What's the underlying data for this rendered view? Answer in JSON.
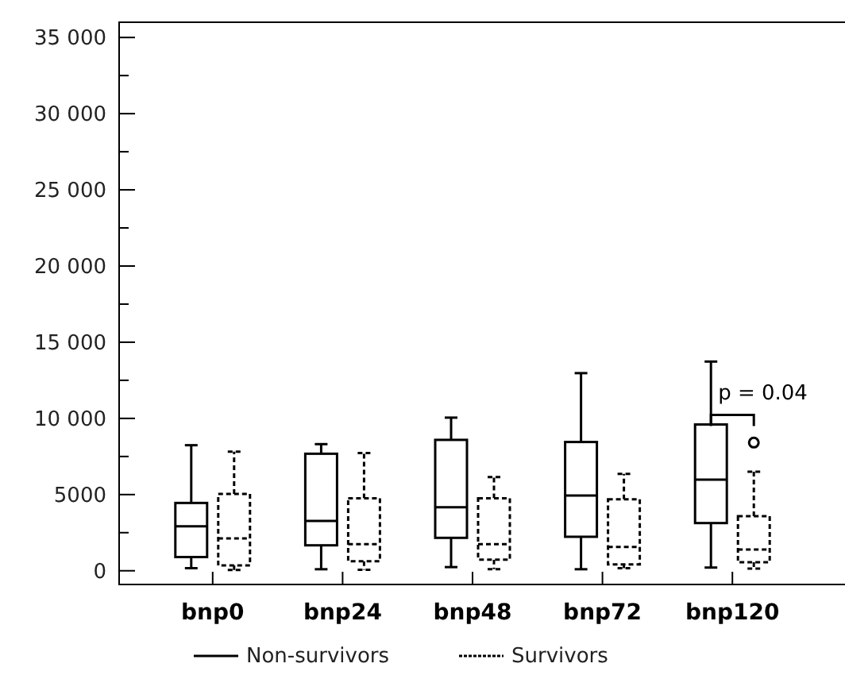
{
  "chart_data": {
    "type": "box",
    "categories": [
      "bnp0",
      "bnp24",
      "bnp48",
      "bnp72",
      "bnp120"
    ],
    "ylim": [
      -900,
      36000
    ],
    "yticks": [
      0,
      {
        "value": 2500,
        "label": null
      },
      {
        "value": 5000,
        "label": "5000"
      },
      {
        "value": 7500,
        "label": null
      },
      {
        "value": 10000,
        "label": "10 000"
      },
      {
        "value": 12500,
        "label": null
      },
      {
        "value": 15000,
        "label": "15 000"
      },
      {
        "value": 17500,
        "label": null
      },
      {
        "value": 20000,
        "label": "20 000"
      },
      {
        "value": 22500,
        "label": null
      },
      {
        "value": 25000,
        "label": "25 000"
      },
      {
        "value": 27500,
        "label": null
      },
      {
        "value": 30000,
        "label": "30 000"
      },
      {
        "value": 32500,
        "label": null
      },
      {
        "value": 35000,
        "label": "35 000"
      }
    ],
    "series": [
      {
        "name": "Non-survivors",
        "color": "#000000",
        "line_style": "solid",
        "boxes": [
          {
            "low": 170,
            "q1": 900,
            "median": 2920,
            "q3": 4450,
            "high": 8240
          },
          {
            "low": 100,
            "q1": 1670,
            "median": 3270,
            "q3": 7680,
            "high": 8310
          },
          {
            "low": 240,
            "q1": 2160,
            "median": 4170,
            "q3": 8590,
            "high": 10050
          },
          {
            "low": 100,
            "q1": 2230,
            "median": 4940,
            "q3": 8450,
            "high": 12970
          },
          {
            "low": 210,
            "q1": 3130,
            "median": 5980,
            "q3": 9600,
            "high": 13730
          }
        ]
      },
      {
        "name": "Survivors",
        "color": "#000000",
        "line_style": "dashed",
        "boxes": [
          {
            "low": 50,
            "q1": 350,
            "median": 2120,
            "q3": 5040,
            "high": 7820
          },
          {
            "low": 70,
            "q1": 630,
            "median": 1740,
            "q3": 4760,
            "high": 7720
          },
          {
            "low": 100,
            "q1": 730,
            "median": 1740,
            "q3": 4760,
            "high": 6150
          },
          {
            "low": 170,
            "q1": 420,
            "median": 1560,
            "q3": 4690,
            "high": 6360
          },
          {
            "low": 140,
            "q1": 560,
            "median": 1390,
            "q3": 3580,
            "high": 6500,
            "outliers": [
              8410
            ]
          }
        ]
      }
    ],
    "annotations": [
      "p = 0.04"
    ],
    "legend": "bottom",
    "grid": false
  }
}
